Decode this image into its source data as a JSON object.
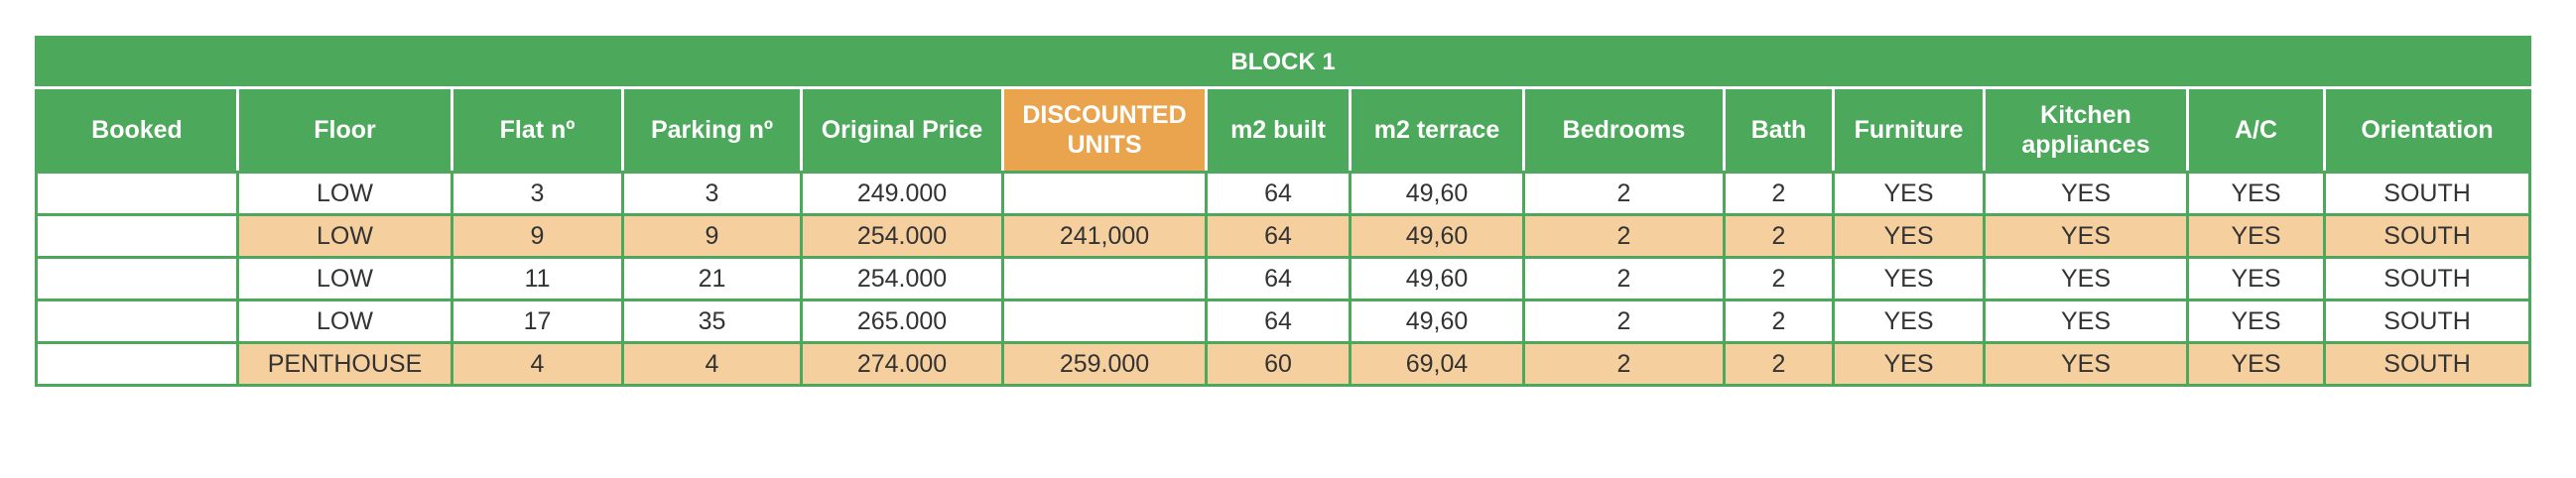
{
  "table": {
    "title": "BLOCK 1",
    "columns": [
      "Booked",
      "Floor",
      "Flat nº",
      "Parking nº",
      "Original Price",
      "DISCOUNTED UNITS",
      "m2 built",
      "m2 terrace",
      "Bedrooms",
      "Bath",
      "Furniture",
      "Kitchen appliances",
      "A/C",
      "Orientation"
    ],
    "discounted_header_color": "#eba44e",
    "header_color": "#4ca85a",
    "highlight_row_color": "#f6cf9f",
    "rows": [
      {
        "booked": "",
        "floor": "LOW",
        "flat": "3",
        "parking": "3",
        "original_price": "249.000",
        "discounted": "",
        "m2_built": "64",
        "m2_terrace": "49,60",
        "bedrooms": "2",
        "bath": "2",
        "furniture": "YES",
        "kitchen_appliances": "YES",
        "ac": "YES",
        "orientation": "SOUTH",
        "highlight": false
      },
      {
        "booked": "",
        "floor": "LOW",
        "flat": "9",
        "parking": "9",
        "original_price": "254.000",
        "discounted": "241,000",
        "m2_built": "64",
        "m2_terrace": "49,60",
        "bedrooms": "2",
        "bath": "2",
        "furniture": "YES",
        "kitchen_appliances": "YES",
        "ac": "YES",
        "orientation": "SOUTH",
        "highlight": true
      },
      {
        "booked": "",
        "floor": "LOW",
        "flat": "11",
        "parking": "21",
        "original_price": "254.000",
        "discounted": "",
        "m2_built": "64",
        "m2_terrace": "49,60",
        "bedrooms": "2",
        "bath": "2",
        "furniture": "YES",
        "kitchen_appliances": "YES",
        "ac": "YES",
        "orientation": "SOUTH",
        "highlight": false
      },
      {
        "booked": "",
        "floor": "LOW",
        "flat": "17",
        "parking": "35",
        "original_price": "265.000",
        "discounted": "",
        "m2_built": "64",
        "m2_terrace": "49,60",
        "bedrooms": "2",
        "bath": "2",
        "furniture": "YES",
        "kitchen_appliances": "YES",
        "ac": "YES",
        "orientation": "SOUTH",
        "highlight": false
      },
      {
        "booked": "",
        "floor": "PENTHOUSE",
        "flat": "4",
        "parking": "4",
        "original_price": "274.000",
        "discounted": "259.000",
        "m2_built": "60",
        "m2_terrace": "69,04",
        "bedrooms": "2",
        "bath": "2",
        "furniture": "YES",
        "kitchen_appliances": "YES",
        "ac": "YES",
        "orientation": "SOUTH",
        "highlight": true
      }
    ]
  }
}
